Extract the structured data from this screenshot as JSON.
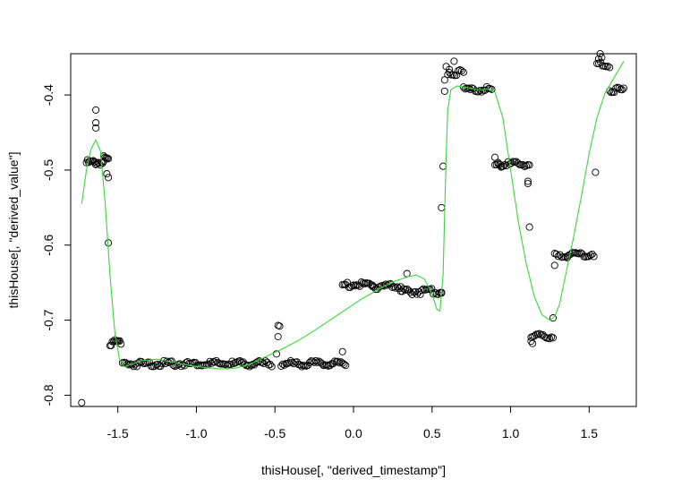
{
  "chart_data": {
    "type": "scatter",
    "xlabel": "thisHouse[, \"derived_timestamp\"]",
    "ylabel": "thisHouse[, \"derived_value\"]",
    "xlim": [
      -1.8,
      1.8
    ],
    "ylim": [
      -0.815,
      -0.345
    ],
    "x_ticks": [
      -1.5,
      -1.0,
      -0.5,
      0.0,
      0.5,
      1.0,
      1.5
    ],
    "x_tick_labels": [
      "-1.5",
      "-1.0",
      "-0.5",
      "0.0",
      "0.5",
      "1.0",
      "1.5"
    ],
    "y_ticks": [
      -0.8,
      -0.7,
      -0.6,
      -0.5,
      -0.4
    ],
    "y_tick_labels": [
      "-0.8",
      "-0.7",
      "-0.6",
      "-0.5",
      "-0.4"
    ],
    "grid": false,
    "series": [
      {
        "kind": "points",
        "marker": "open-circle",
        "color": "#000000",
        "segments": [
          {
            "x_start": -1.7,
            "x_end": -1.59,
            "y": -0.49,
            "count": 16
          },
          {
            "x_start": -1.59,
            "x_end": -1.56,
            "y": -0.482,
            "count": 5
          },
          {
            "x_start": -1.55,
            "x_end": -1.48,
            "y": -0.73,
            "count": 10
          },
          {
            "x_start": -1.47,
            "x_end": -0.52,
            "y": -0.758,
            "count": 95
          },
          {
            "x_start": -0.46,
            "x_end": -0.05,
            "y": -0.758,
            "count": 42
          },
          {
            "x_start": -0.07,
            "x_end": 0.12,
            "y": -0.653,
            "count": 20
          },
          {
            "x_start": 0.12,
            "x_end": 0.3,
            "y": -0.655,
            "count": 18
          },
          {
            "x_start": 0.3,
            "x_end": 0.56,
            "y": -0.662,
            "count": 26
          },
          {
            "x_start": 0.6,
            "x_end": 0.7,
            "y": -0.37,
            "count": 10
          },
          {
            "x_start": 0.7,
            "x_end": 0.88,
            "y": -0.393,
            "count": 18
          },
          {
            "x_start": 0.9,
            "x_end": 1.12,
            "y": -0.492,
            "count": 22
          },
          {
            "x_start": 1.13,
            "x_end": 1.27,
            "y": -0.722,
            "count": 14
          },
          {
            "x_start": 1.28,
            "x_end": 1.36,
            "y": -0.613,
            "count": 8
          },
          {
            "x_start": 1.36,
            "x_end": 1.53,
            "y": -0.612,
            "count": 17
          },
          {
            "x_start": 1.55,
            "x_end": 1.63,
            "y": -0.36,
            "count": 8
          },
          {
            "x_start": 1.63,
            "x_end": 1.72,
            "y": -0.393,
            "count": 10
          }
        ],
        "points": [
          [
            -1.73,
            -0.81
          ],
          [
            -1.64,
            -0.42
          ],
          [
            -1.64,
            -0.437
          ],
          [
            -1.64,
            -0.444
          ],
          [
            -1.57,
            -0.505
          ],
          [
            -1.56,
            -0.51
          ],
          [
            -1.56,
            -0.597
          ],
          [
            -0.48,
            -0.707
          ],
          [
            -0.47,
            -0.708
          ],
          [
            -0.48,
            -0.722
          ],
          [
            -0.49,
            -0.745
          ],
          [
            -0.07,
            -0.742
          ],
          [
            0.34,
            -0.638
          ],
          [
            0.56,
            -0.664
          ],
          [
            0.56,
            -0.55
          ],
          [
            0.57,
            -0.495
          ],
          [
            0.58,
            -0.395
          ],
          [
            0.58,
            -0.38
          ],
          [
            0.59,
            -0.362
          ],
          [
            0.61,
            -0.366
          ],
          [
            0.64,
            -0.355
          ],
          [
            0.9,
            -0.483
          ],
          [
            0.92,
            -0.49
          ],
          [
            0.94,
            -0.496
          ],
          [
            1.11,
            -0.515
          ],
          [
            1.11,
            -0.518
          ],
          [
            1.12,
            -0.576
          ],
          [
            1.13,
            -0.728
          ],
          [
            1.14,
            -0.731
          ],
          [
            1.27,
            -0.697
          ],
          [
            1.28,
            -0.627
          ],
          [
            1.54,
            -0.503
          ],
          [
            1.57,
            -0.345
          ],
          [
            1.58,
            -0.35
          ],
          [
            1.56,
            -0.352
          ]
        ]
      },
      {
        "kind": "line",
        "color": "#33dd33",
        "x": [
          -1.73,
          -1.7,
          -1.67,
          -1.64,
          -1.61,
          -1.58,
          -1.55,
          -1.52,
          -1.49,
          -1.46,
          -1.43,
          -1.35,
          -1.25,
          -1.15,
          -1.05,
          -0.95,
          -0.85,
          -0.75,
          -0.65,
          -0.55,
          -0.45,
          -0.35,
          -0.25,
          -0.15,
          -0.05,
          0.05,
          0.15,
          0.25,
          0.35,
          0.4,
          0.45,
          0.5,
          0.53,
          0.55,
          0.57,
          0.58,
          0.59,
          0.6,
          0.62,
          0.66,
          0.72,
          0.8,
          0.86,
          0.9,
          0.95,
          1.0,
          1.05,
          1.1,
          1.15,
          1.2,
          1.25,
          1.28,
          1.31,
          1.35,
          1.4,
          1.45,
          1.5,
          1.55,
          1.6,
          1.65,
          1.72
        ],
        "y": [
          -0.545,
          -0.5,
          -0.472,
          -0.46,
          -0.475,
          -0.545,
          -0.64,
          -0.715,
          -0.752,
          -0.762,
          -0.76,
          -0.754,
          -0.752,
          -0.756,
          -0.76,
          -0.763,
          -0.765,
          -0.764,
          -0.758,
          -0.748,
          -0.738,
          -0.727,
          -0.714,
          -0.7,
          -0.686,
          -0.672,
          -0.66,
          -0.649,
          -0.642,
          -0.64,
          -0.645,
          -0.665,
          -0.685,
          -0.688,
          -0.64,
          -0.56,
          -0.48,
          -0.42,
          -0.393,
          -0.388,
          -0.39,
          -0.393,
          -0.392,
          -0.396,
          -0.43,
          -0.5,
          -0.57,
          -0.625,
          -0.668,
          -0.693,
          -0.7,
          -0.695,
          -0.68,
          -0.64,
          -0.59,
          -0.535,
          -0.478,
          -0.43,
          -0.398,
          -0.38,
          -0.355
        ]
      }
    ]
  }
}
